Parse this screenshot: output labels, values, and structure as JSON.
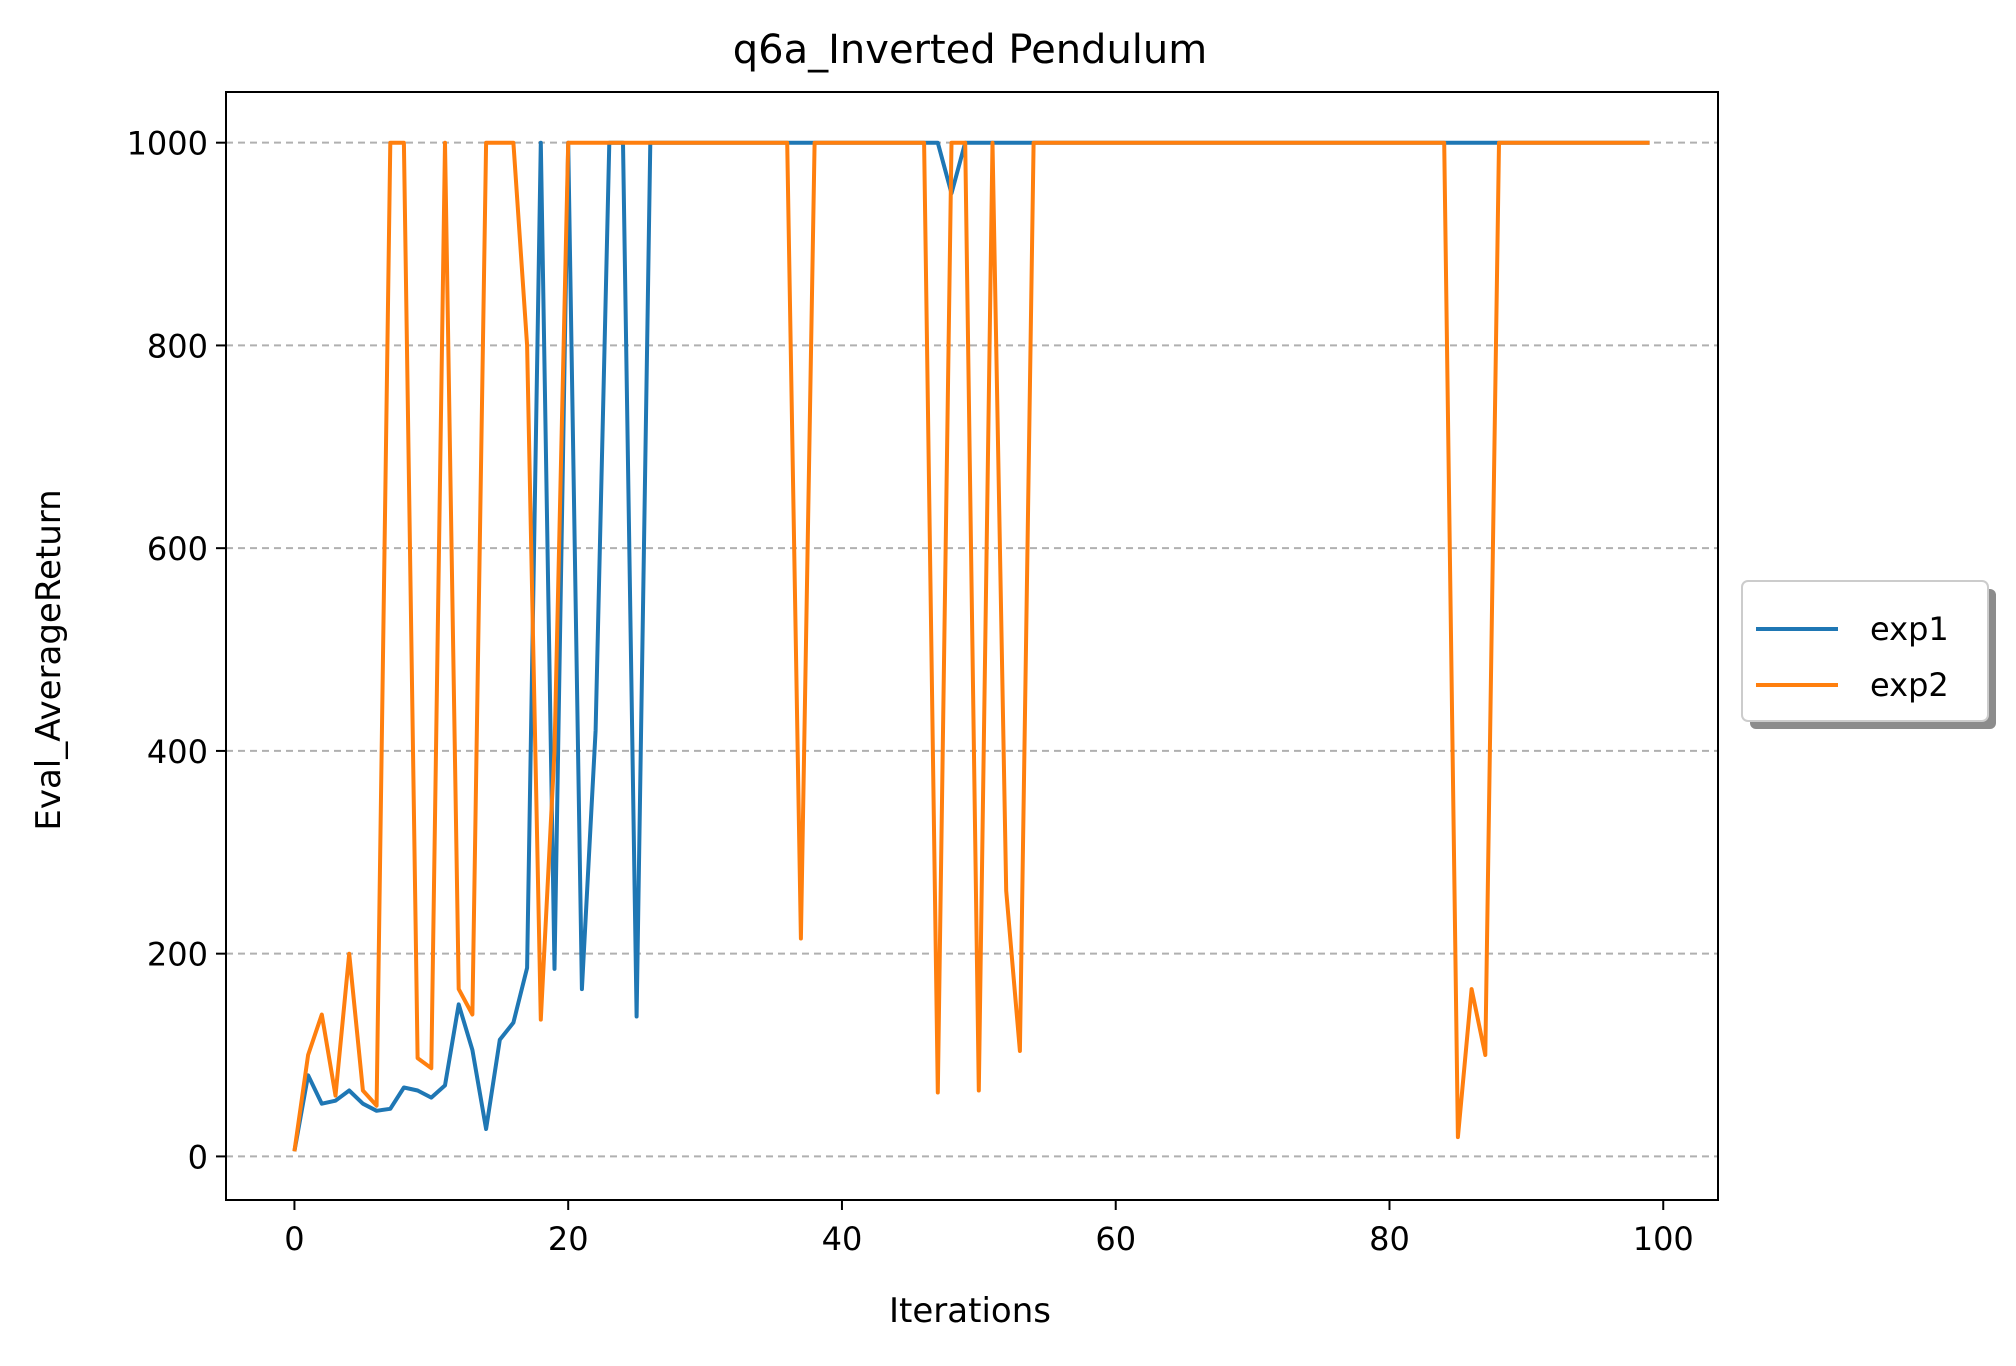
{
  "chart_data": {
    "type": "line",
    "title": "q6a_Inverted Pendulum",
    "xlabel": "Iterations",
    "ylabel": "Eval_AverageReturn",
    "xlim": [
      -5,
      104
    ],
    "ylim": [
      -43,
      1050
    ],
    "xticks": [
      0,
      20,
      40,
      60,
      80,
      100
    ],
    "yticks": [
      0,
      200,
      400,
      600,
      800,
      1000
    ],
    "xtick_labels": [
      "0",
      "20",
      "40",
      "60",
      "80",
      "100"
    ],
    "ytick_labels": [
      "0",
      "200",
      "400",
      "600",
      "800",
      "1000"
    ],
    "grid": "y-dashed",
    "legend_position": "center-right-outside",
    "series": [
      {
        "name": "exp1",
        "color": "#1f77b4",
        "x": [
          0,
          1,
          2,
          3,
          4,
          5,
          6,
          7,
          8,
          9,
          10,
          11,
          12,
          13,
          14,
          15,
          16,
          17,
          18,
          19,
          20,
          21,
          22,
          23,
          24,
          25,
          26,
          27,
          28,
          29,
          30,
          31,
          32,
          33,
          34,
          35,
          36,
          37,
          38,
          39,
          40,
          41,
          42,
          43,
          44,
          45,
          46,
          47,
          48,
          49,
          50,
          51,
          52,
          53,
          54,
          55,
          56,
          57,
          58,
          59,
          60,
          61,
          62,
          63,
          64,
          65,
          66,
          67,
          68,
          69,
          70,
          71,
          72,
          73,
          74,
          75,
          76,
          77,
          78,
          79,
          80,
          81,
          82,
          83,
          84,
          85,
          86,
          87,
          88,
          89,
          90,
          91,
          92,
          93,
          94,
          95,
          96,
          97,
          98,
          99
        ],
        "values": [
          5,
          80,
          52,
          55,
          65,
          52,
          45,
          47,
          68,
          65,
          58,
          70,
          150,
          105,
          27,
          115,
          132,
          186,
          1000,
          185,
          1000,
          165,
          420,
          1000,
          1000,
          138,
          1000,
          1000,
          1000,
          1000,
          1000,
          1000,
          1000,
          1000,
          1000,
          1000,
          1000,
          1000,
          1000,
          1000,
          1000,
          1000,
          1000,
          1000,
          1000,
          1000,
          1000,
          1000,
          950,
          1000,
          1000,
          1000,
          1000,
          1000,
          1000,
          1000,
          1000,
          1000,
          1000,
          1000,
          1000,
          1000,
          1000,
          1000,
          1000,
          1000,
          1000,
          1000,
          1000,
          1000,
          1000,
          1000,
          1000,
          1000,
          1000,
          1000,
          1000,
          1000,
          1000,
          1000,
          1000,
          1000,
          1000,
          1000,
          1000,
          1000,
          1000,
          1000,
          1000,
          1000,
          1000,
          1000,
          1000,
          1000,
          1000,
          1000,
          1000,
          1000,
          1000,
          1000
        ]
      },
      {
        "name": "exp2",
        "color": "#ff7f0e",
        "x": [
          0,
          1,
          2,
          3,
          4,
          5,
          6,
          7,
          8,
          9,
          10,
          11,
          12,
          13,
          14,
          15,
          16,
          17,
          18,
          19,
          20,
          21,
          22,
          23,
          24,
          25,
          26,
          27,
          28,
          29,
          30,
          31,
          32,
          33,
          34,
          35,
          36,
          37,
          38,
          39,
          40,
          41,
          42,
          43,
          44,
          45,
          46,
          47,
          48,
          49,
          50,
          51,
          52,
          53,
          54,
          55,
          56,
          57,
          58,
          59,
          60,
          61,
          62,
          63,
          64,
          65,
          66,
          67,
          68,
          69,
          70,
          71,
          72,
          73,
          74,
          75,
          76,
          77,
          78,
          79,
          80,
          81,
          82,
          83,
          84,
          85,
          86,
          87,
          88,
          89,
          90,
          91,
          92,
          93,
          94,
          95,
          96,
          97,
          98,
          99
        ],
        "values": [
          5,
          100,
          140,
          60,
          200,
          65,
          50,
          1000,
          1000,
          97,
          87,
          1000,
          165,
          140,
          1000,
          1000,
          1000,
          800,
          135,
          400,
          1000,
          1000,
          1000,
          1000,
          1000,
          1000,
          1000,
          1000,
          1000,
          1000,
          1000,
          1000,
          1000,
          1000,
          1000,
          1000,
          1000,
          215,
          1000,
          1000,
          1000,
          1000,
          1000,
          1000,
          1000,
          1000,
          1000,
          63,
          1000,
          1000,
          65,
          1000,
          262,
          104,
          1000,
          1000,
          1000,
          1000,
          1000,
          1000,
          1000,
          1000,
          1000,
          1000,
          1000,
          1000,
          1000,
          1000,
          1000,
          1000,
          1000,
          1000,
          1000,
          1000,
          1000,
          1000,
          1000,
          1000,
          1000,
          1000,
          1000,
          1000,
          1000,
          1000,
          1000,
          19,
          165,
          100,
          1000,
          1000,
          1000,
          1000,
          1000,
          1000,
          1000,
          1000,
          1000,
          1000,
          1000,
          1000
        ]
      }
    ]
  }
}
